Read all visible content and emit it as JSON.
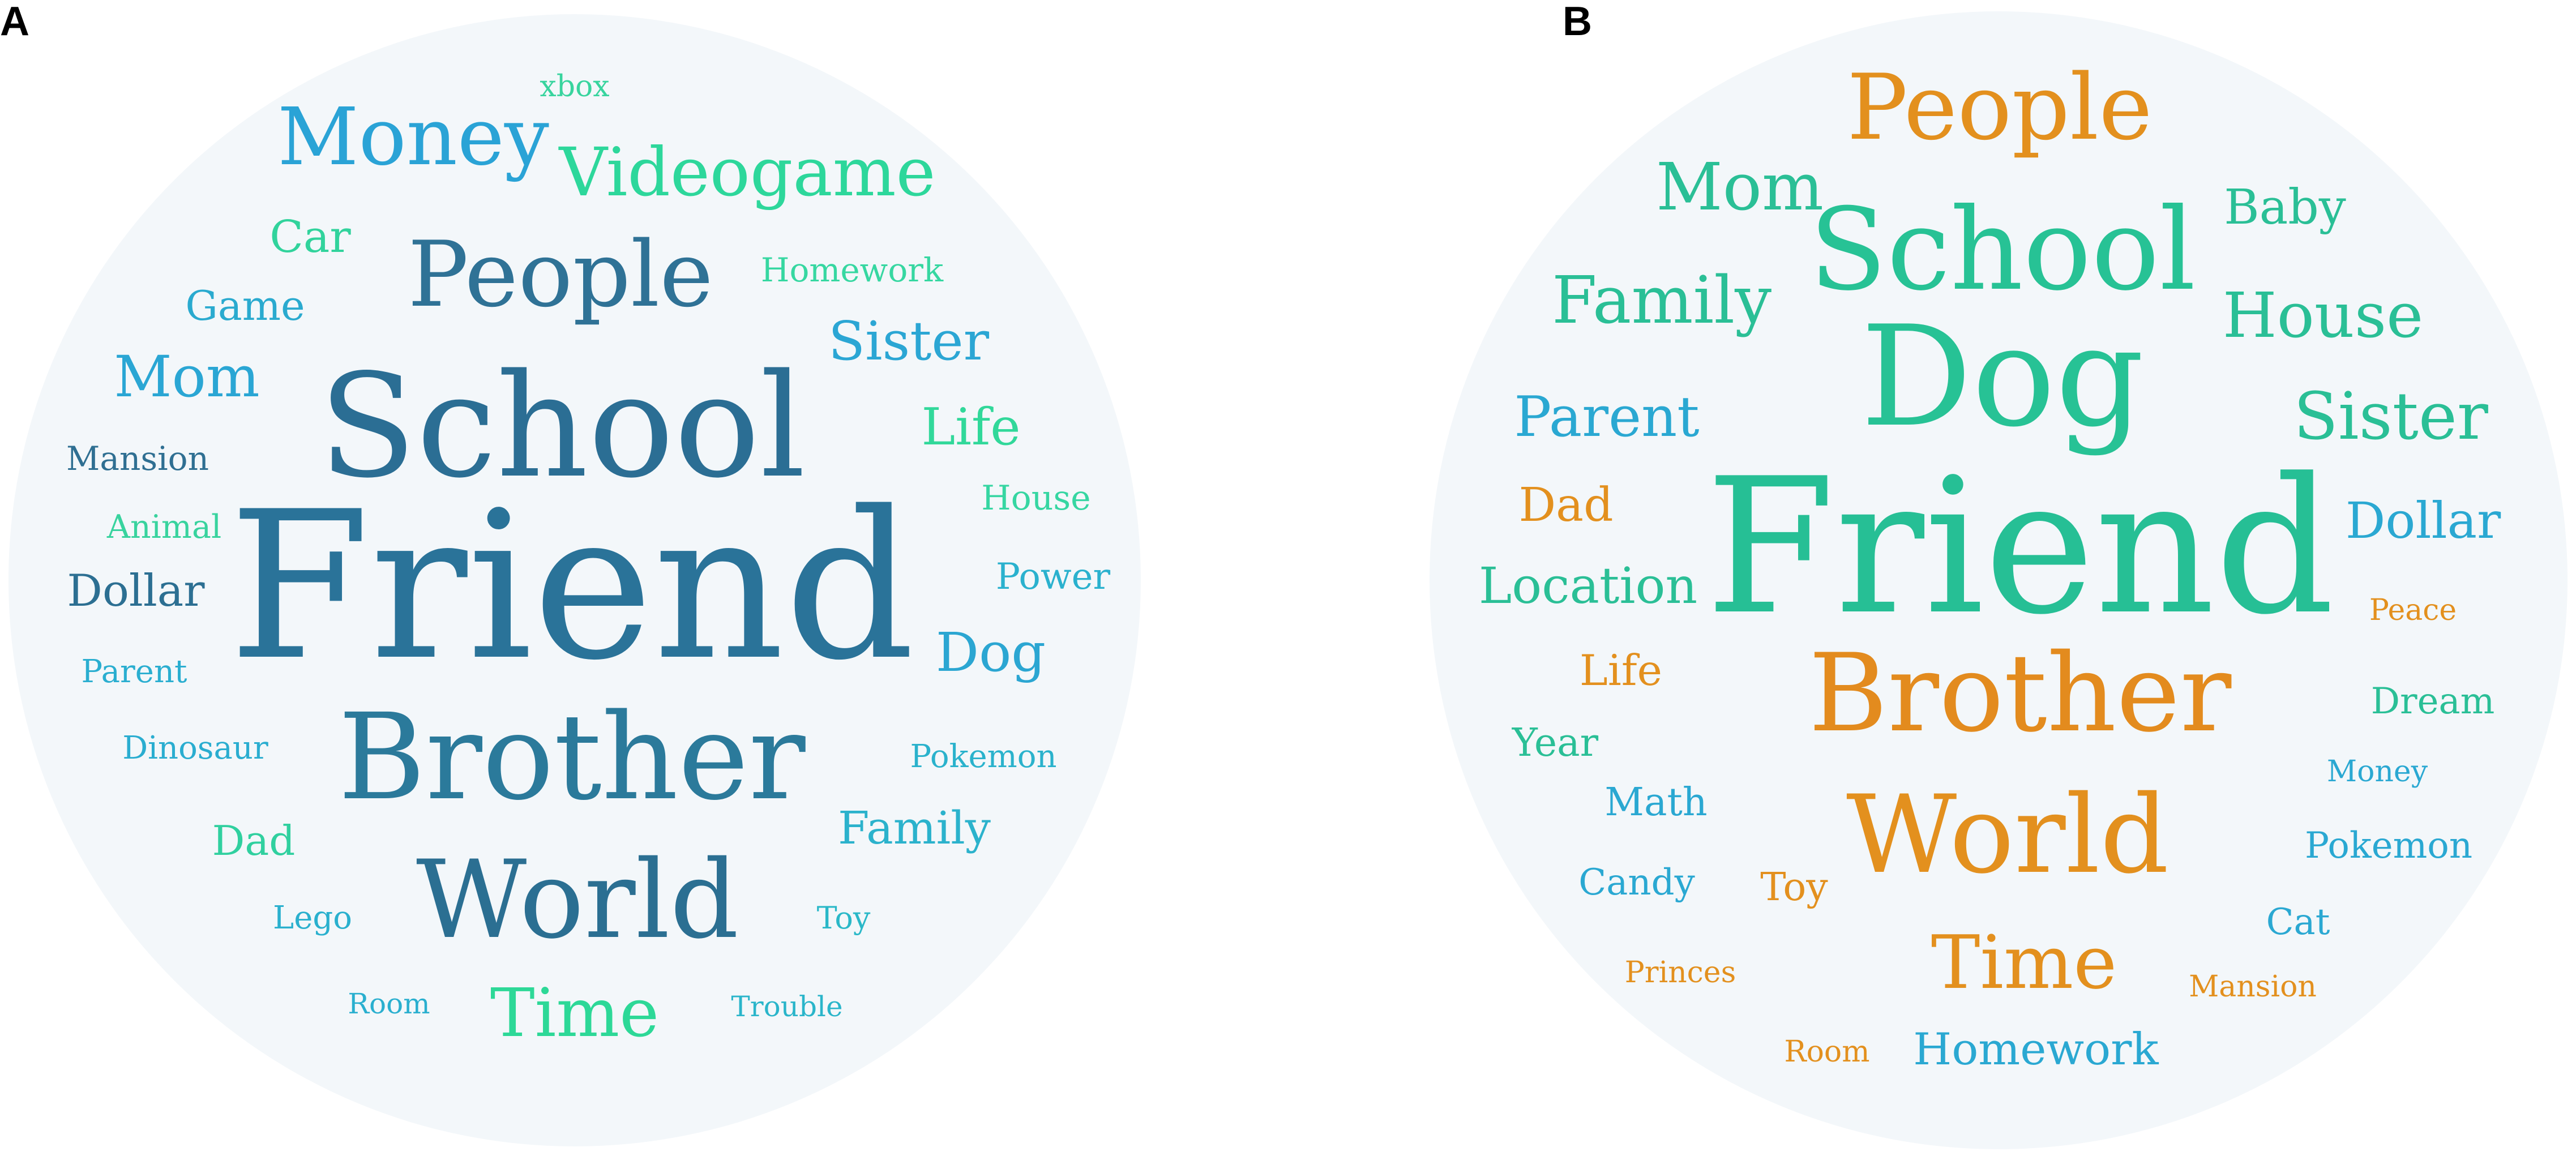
{
  "panels": [
    {
      "label": "A",
      "words": [
        {
          "text": "Friend",
          "tier": 1,
          "color": "#2A7399"
        },
        {
          "text": "School",
          "tier": 2,
          "color": "#2B6E94"
        },
        {
          "text": "Brother",
          "tier": 2,
          "color": "#2B7A9B"
        },
        {
          "text": "World",
          "tier": 3,
          "color": "#2B6F92"
        },
        {
          "text": "People",
          "tier": 4,
          "color": "#2F7296"
        },
        {
          "text": "Money",
          "tier": 5,
          "color": "#2AA3D6"
        },
        {
          "text": "Videogame",
          "tier": 5,
          "color": "#2DD79B"
        },
        {
          "text": "Time",
          "tier": 5,
          "color": "#2DD897"
        },
        {
          "text": "Sister",
          "tier": 6,
          "color": "#2BA6D4"
        },
        {
          "text": "Mom",
          "tier": 6,
          "color": "#2AA6D4"
        },
        {
          "text": "Life",
          "tier": 6,
          "color": "#31D89A"
        },
        {
          "text": "Dog",
          "tier": 6,
          "color": "#2BA6D2"
        },
        {
          "text": "Family",
          "tier": 7,
          "color": "#2BB2CC"
        },
        {
          "text": "Dollar",
          "tier": 7,
          "color": "#2C6F92"
        },
        {
          "text": "Car",
          "tier": 7,
          "color": "#31D39C"
        },
        {
          "text": "Game",
          "tier": 7,
          "color": "#2AAACF"
        },
        {
          "text": "Dad",
          "tier": 7,
          "color": "#30D09F"
        },
        {
          "text": "Power",
          "tier": 8,
          "color": "#2AB1CE"
        },
        {
          "text": "House",
          "tier": 8,
          "color": "#36D6A2"
        },
        {
          "text": "Homework",
          "tier": 8,
          "color": "#36D7A1"
        },
        {
          "text": "Mansion",
          "tier": 8,
          "color": "#2F6F92"
        },
        {
          "text": "Animal",
          "tier": 8,
          "color": "#38D39E"
        },
        {
          "text": "Parent",
          "tier": 8,
          "color": "#2AAED0"
        },
        {
          "text": "Pokemon",
          "tier": 8,
          "color": "#2AB2CC"
        },
        {
          "text": "Dinosaur",
          "tier": 8,
          "color": "#2AADD0"
        },
        {
          "text": "Lego",
          "tier": 8,
          "color": "#2AB0CE"
        },
        {
          "text": "Toy",
          "tier": 8,
          "color": "#2AB8C8"
        },
        {
          "text": "Room",
          "tier": 9,
          "color": "#2AAFCF"
        },
        {
          "text": "Trouble",
          "tier": 9,
          "color": "#2AB5CA"
        },
        {
          "text": "xbox",
          "tier": 9,
          "color": "#38D49E"
        }
      ]
    },
    {
      "label": "B",
      "words": [
        {
          "text": "Friend",
          "tier": 1,
          "color": "#26BF95"
        },
        {
          "text": "Dog",
          "tier": 2,
          "color": "#27C295"
        },
        {
          "text": "Brother",
          "tier": 3,
          "color": "#E38B1E"
        },
        {
          "text": "School",
          "tier": 3,
          "color": "#27C295"
        },
        {
          "text": "World",
          "tier": 3,
          "color": "#E3901E"
        },
        {
          "text": "People",
          "tier": 4,
          "color": "#E3901E"
        },
        {
          "text": "Time",
          "tier": 4,
          "color": "#E3901E"
        },
        {
          "text": "Mom",
          "tier": 5,
          "color": "#2ABF96"
        },
        {
          "text": "Family",
          "tier": 5,
          "color": "#2ABF96"
        },
        {
          "text": "Sister",
          "tier": 5,
          "color": "#2ABF96"
        },
        {
          "text": "House",
          "tier": 5,
          "color": "#2ABF96"
        },
        {
          "text": "Parent",
          "tier": 6,
          "color": "#2AA8D2"
        },
        {
          "text": "Location",
          "tier": 6,
          "color": "#2ABF96"
        },
        {
          "text": "Dollar",
          "tier": 6,
          "color": "#2AA8D2"
        },
        {
          "text": "Baby",
          "tier": 6,
          "color": "#2ABF96"
        },
        {
          "text": "Homework",
          "tier": 6,
          "color": "#2AA8D2"
        },
        {
          "text": "Dad",
          "tier": 7,
          "color": "#E3901E"
        },
        {
          "text": "Life",
          "tier": 7,
          "color": "#E3901E"
        },
        {
          "text": "Dream",
          "tier": 7,
          "color": "#2ABF96"
        },
        {
          "text": "Year",
          "tier": 7,
          "color": "#2ABF96"
        },
        {
          "text": "Math",
          "tier": 7,
          "color": "#2AA8D2"
        },
        {
          "text": "Candy",
          "tier": 7,
          "color": "#2AA8D2"
        },
        {
          "text": "Pokemon",
          "tier": 7,
          "color": "#2AA8D2"
        },
        {
          "text": "Cat",
          "tier": 7,
          "color": "#2AA8D2"
        },
        {
          "text": "Toy",
          "tier": 7,
          "color": "#E3901E"
        },
        {
          "text": "Money",
          "tier": 8,
          "color": "#2AA8D2"
        },
        {
          "text": "Peace",
          "tier": 8,
          "color": "#E3901E"
        },
        {
          "text": "Princes",
          "tier": 8,
          "color": "#E3901E"
        },
        {
          "text": "Mansion",
          "tier": 8,
          "color": "#E3901E"
        },
        {
          "text": "Room",
          "tier": 8,
          "color": "#E3901E"
        }
      ]
    }
  ]
}
